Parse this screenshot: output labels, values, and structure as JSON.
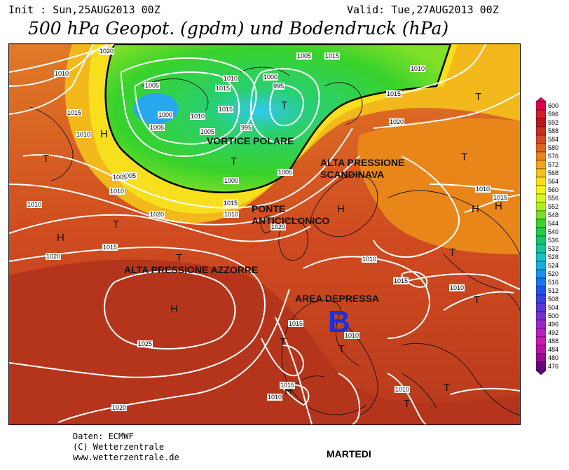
{
  "header": {
    "init": "Init : Sun,25AUG2013 00Z",
    "valid": "Valid: Tue,27AUG2013 00Z",
    "title": "500 hPa Geopot. (gpdm) und Bodendruck (hPa)"
  },
  "annotations": {
    "vortice": "VORTICE POLARE",
    "alta_scand_1": "ALTA PRESSIONE",
    "alta_scand_2": "SCANDINAVA",
    "ponte_1": "PONTE",
    "ponte_2": "ANTICICLONICO",
    "azzorre": "ALTA PRESSIONE AZZORRE",
    "area": "AREA DEPRESSA",
    "big_b": "B"
  },
  "pressure_centers": [
    {
      "label": "H"
    },
    {
      "label": "T"
    },
    {
      "label": "T"
    },
    {
      "label": "H"
    },
    {
      "label": "T"
    },
    {
      "label": "H"
    },
    {
      "label": "T"
    },
    {
      "label": "H"
    },
    {
      "label": "T"
    },
    {
      "label": "T"
    },
    {
      "label": "T"
    },
    {
      "label": "T"
    },
    {
      "label": "H"
    },
    {
      "label": "T"
    },
    {
      "label": "T"
    },
    {
      "label": "T"
    },
    {
      "label": "H"
    },
    {
      "label": "T"
    },
    {
      "label": "T"
    },
    {
      "label": "H"
    }
  ],
  "isobar_labels": [
    "1020",
    "1010",
    "1015",
    "1010",
    "1005",
    "1000",
    "1005",
    "1010",
    "1015",
    "1010",
    "1015",
    "1000",
    "995",
    "1005",
    "995",
    "1005",
    "1015",
    "1000",
    "1005",
    "1010",
    "1015",
    "1020",
    "1010",
    "1005",
    "1010",
    "1015",
    "1020",
    "1015",
    "1020",
    "1020",
    "1010",
    "1015",
    "1015",
    "1010",
    "1025",
    "1015",
    "1010",
    "1015",
    "1010",
    "1020",
    "1005",
    "1010",
    "1010",
    "1010"
  ],
  "legend": {
    "values": [
      "600",
      "596",
      "592",
      "588",
      "584",
      "580",
      "576",
      "572",
      "568",
      "564",
      "560",
      "556",
      "552",
      "548",
      "544",
      "540",
      "536",
      "532",
      "528",
      "524",
      "520",
      "516",
      "512",
      "508",
      "504",
      "500",
      "496",
      "492",
      "488",
      "484",
      "480",
      "476"
    ],
    "colors": [
      "#e2004c",
      "#d61a2a",
      "#b8181c",
      "#c43022",
      "#d44a22",
      "#e0661c",
      "#e9861a",
      "#f0a41c",
      "#f5c21c",
      "#f7df1e",
      "#f5f21e",
      "#d5f520",
      "#a8f020",
      "#7ae028",
      "#3ad42c",
      "#1ece46",
      "#12c66a",
      "#12c49a",
      "#12c2c4",
      "#12b0dc",
      "#1894ec",
      "#1a74f0",
      "#2054ec",
      "#3a40e0",
      "#5a38d8",
      "#7a30d0",
      "#9a28c8",
      "#b820c0",
      "#d018b4",
      "#c010a4",
      "#9a0894",
      "#6a0080"
    ]
  },
  "footer": {
    "daten": "Daten: ECMWF",
    "copy": "(C) Wetterzentrale",
    "url": "www.wetterzentrale.de",
    "day": "MARTEDI"
  }
}
